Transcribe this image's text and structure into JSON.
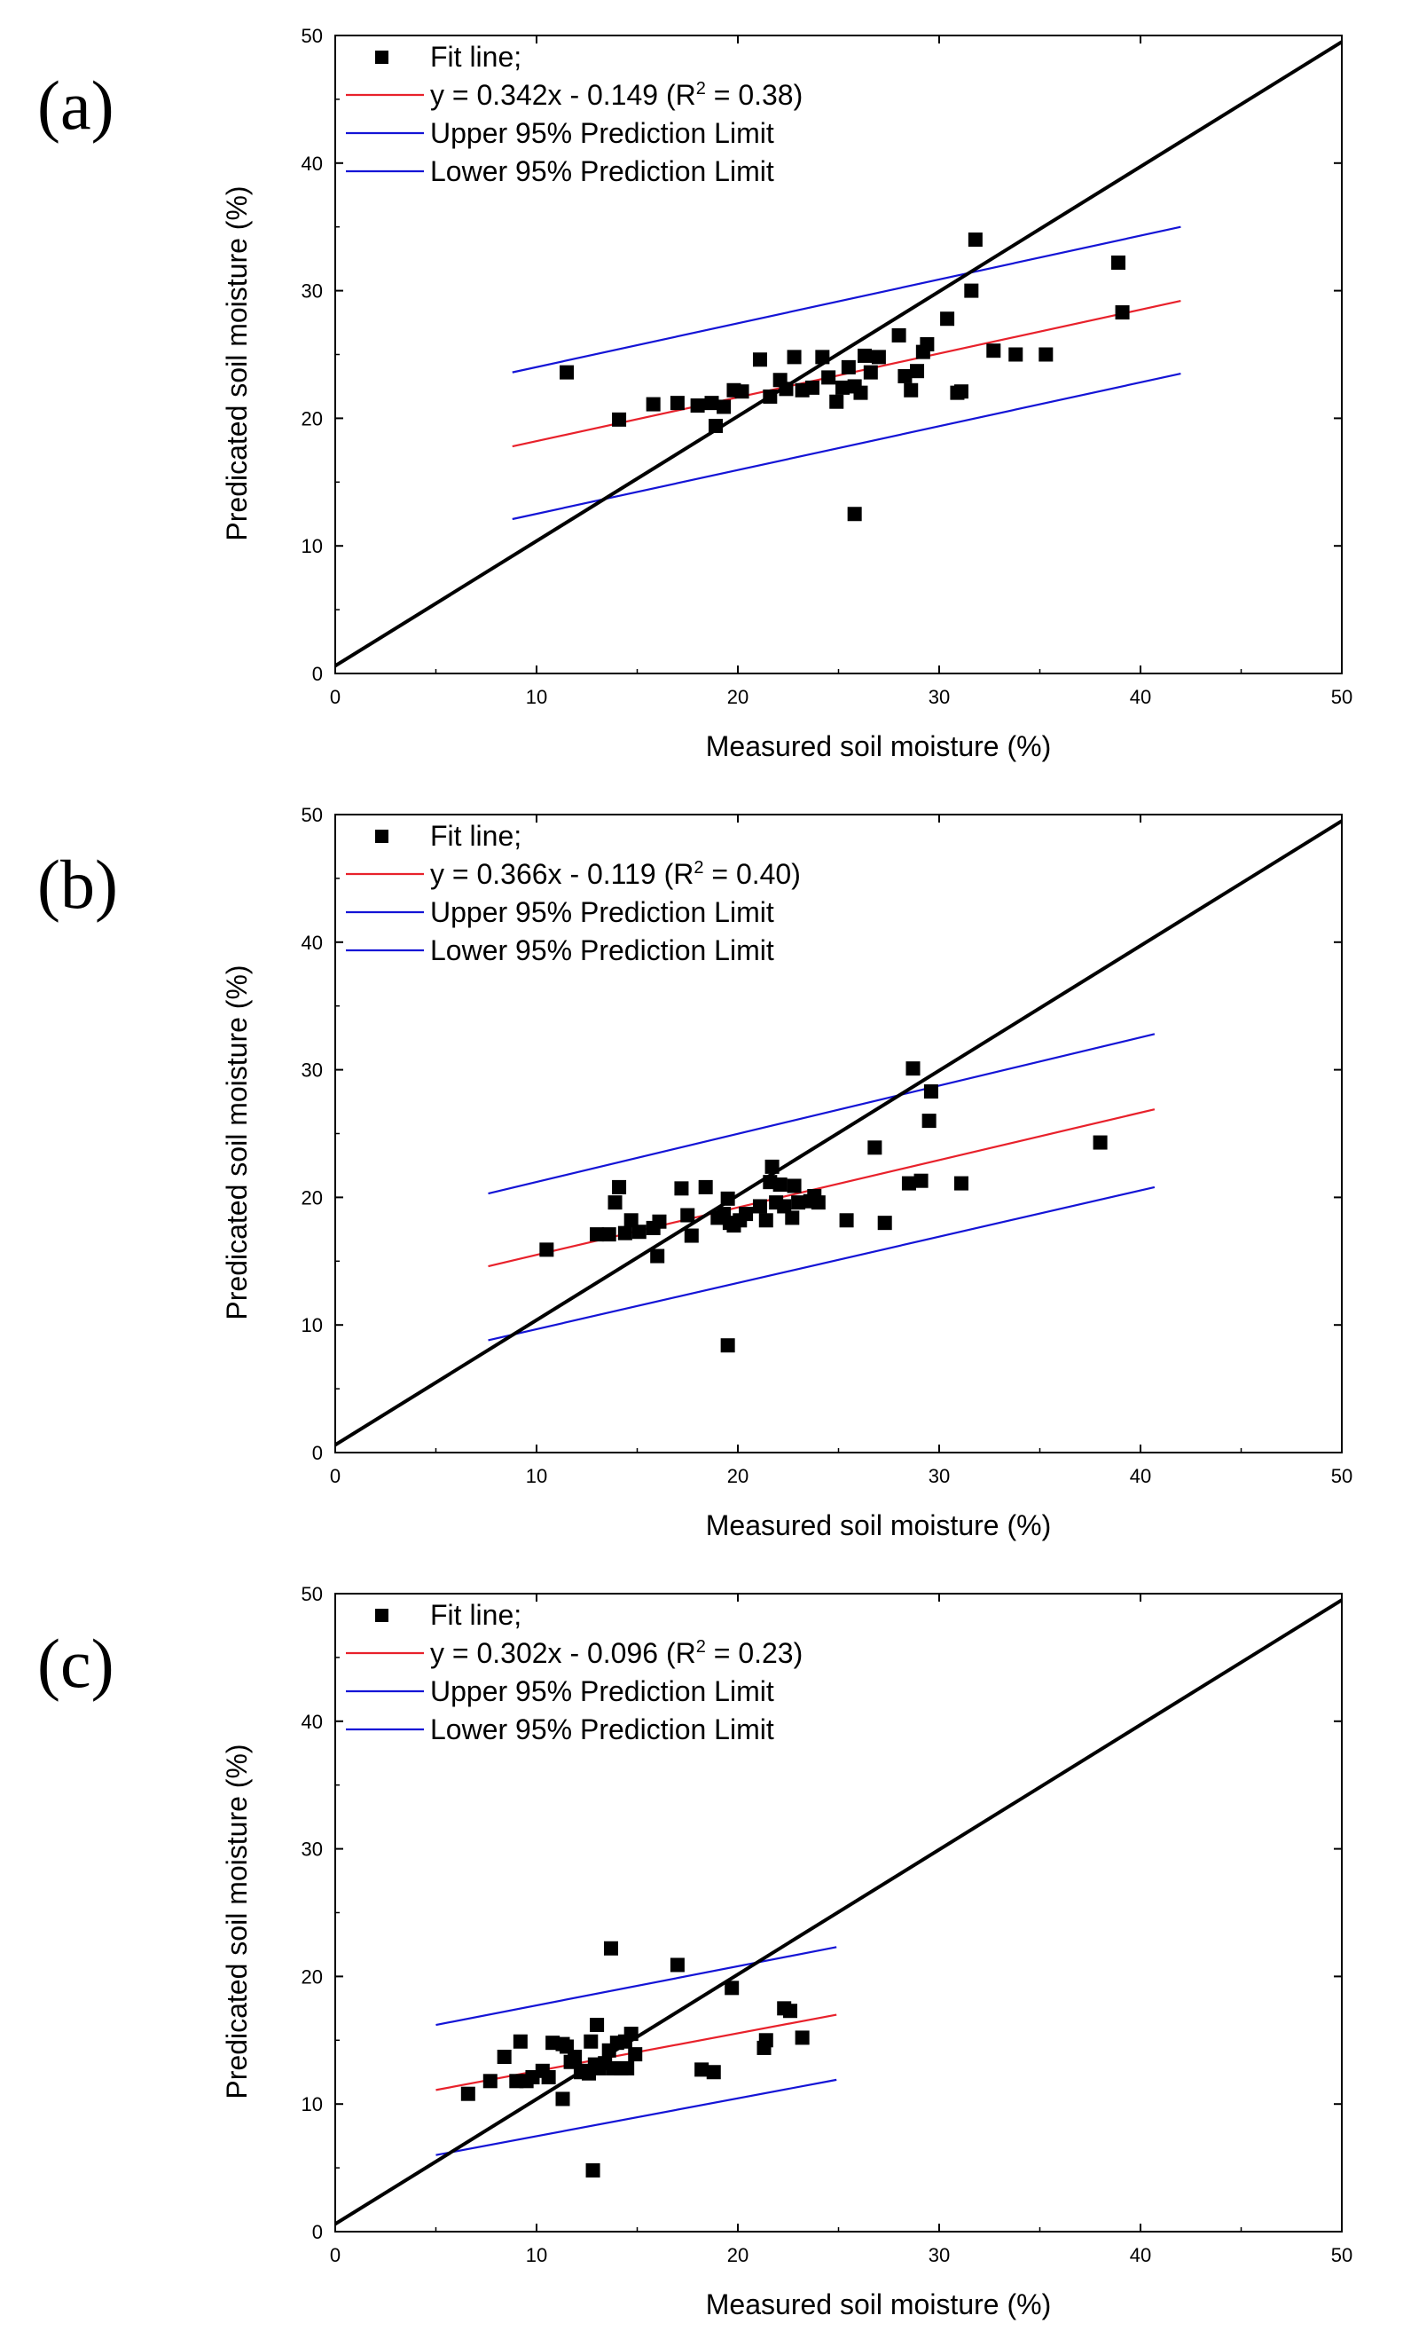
{
  "chart_data": [
    {
      "type": "scatter",
      "panel": "(a)",
      "xlabel": "Measured soil moisture (%)",
      "ylabel": "Predicated soil moisture (%)",
      "xlim": [
        0,
        50
      ],
      "ylim": [
        0,
        50
      ],
      "xticks": [
        "0",
        "10",
        "20",
        "30",
        "40",
        "50"
      ],
      "yticks": [
        "0",
        "10",
        "20",
        "30",
        "40",
        "50"
      ],
      "legend": {
        "position": "top-left",
        "points_label": "Fit line;",
        "fit_label": "y = 0.342x - 0.149 (R",
        "fit_sup": "2",
        "fit_tail": " = 0.38)",
        "upper_label": "Upper 95% Prediction Limit",
        "lower_label": "Lower 95% Prediction Limit"
      },
      "one_to_one": [
        [
          0,
          0.6
        ],
        [
          50,
          49.5
        ]
      ],
      "fit_line": [
        [
          8.8,
          17.8
        ],
        [
          42,
          29.2
        ]
      ],
      "upper_limit": [
        [
          8.8,
          23.6
        ],
        [
          42,
          35.0
        ]
      ],
      "lower_limit": [
        [
          8.8,
          12.1
        ],
        [
          42,
          23.5
        ]
      ],
      "points": [
        [
          11.5,
          23.6
        ],
        [
          14.1,
          19.9
        ],
        [
          15.8,
          21.1
        ],
        [
          17.0,
          21.2
        ],
        [
          18.0,
          21.0
        ],
        [
          18.7,
          21.2
        ],
        [
          18.9,
          19.4
        ],
        [
          19.3,
          20.9
        ],
        [
          19.8,
          22.2
        ],
        [
          20.2,
          22.1
        ],
        [
          21.1,
          24.6
        ],
        [
          21.6,
          21.7
        ],
        [
          22.1,
          23.0
        ],
        [
          22.4,
          22.3
        ],
        [
          22.8,
          24.8
        ],
        [
          23.2,
          22.2
        ],
        [
          23.7,
          22.4
        ],
        [
          24.2,
          24.8
        ],
        [
          24.5,
          23.2
        ],
        [
          24.9,
          21.3
        ],
        [
          25.2,
          22.4
        ],
        [
          25.5,
          24.0
        ],
        [
          25.8,
          22.5
        ],
        [
          26.1,
          22.0
        ],
        [
          25.8,
          12.5
        ],
        [
          26.3,
          24.9
        ],
        [
          26.6,
          23.6
        ],
        [
          27.0,
          24.8
        ],
        [
          28.0,
          26.5
        ],
        [
          28.3,
          23.3
        ],
        [
          28.6,
          22.2
        ],
        [
          28.9,
          23.7
        ],
        [
          29.2,
          25.2
        ],
        [
          29.4,
          25.8
        ],
        [
          30.4,
          27.8
        ],
        [
          30.9,
          22.0
        ],
        [
          31.1,
          22.1
        ],
        [
          31.6,
          30.0
        ],
        [
          31.8,
          34.0
        ],
        [
          32.7,
          25.3
        ],
        [
          33.8,
          25.0
        ],
        [
          35.3,
          25.0
        ],
        [
          38.9,
          32.2
        ],
        [
          39.1,
          28.3
        ]
      ]
    },
    {
      "type": "scatter",
      "panel": "(b)",
      "xlabel": "Measured soil moisture (%)",
      "ylabel": "Predicated soil moisture (%)",
      "xlim": [
        0,
        50
      ],
      "ylim": [
        0,
        50
      ],
      "xticks": [
        "0",
        "10",
        "20",
        "30",
        "40",
        "50"
      ],
      "yticks": [
        "0",
        "10",
        "20",
        "30",
        "40",
        "50"
      ],
      "legend": {
        "position": "top-left",
        "points_label": "Fit line;",
        "fit_label": "y = 0.366x - 0.119 (R",
        "fit_sup": "2",
        "fit_tail": " = 0.40)",
        "upper_label": "Upper 95% Prediction Limit",
        "lower_label": "Lower 95% Prediction Limit"
      },
      "one_to_one": [
        [
          0,
          0.6
        ],
        [
          50,
          49.5
        ]
      ],
      "fit_line": [
        [
          7.6,
          14.6
        ],
        [
          40.7,
          26.9
        ]
      ],
      "upper_limit": [
        [
          7.6,
          20.3
        ],
        [
          40.7,
          32.8
        ]
      ],
      "lower_limit": [
        [
          7.6,
          8.8
        ],
        [
          40.7,
          20.8
        ]
      ],
      "points": [
        [
          10.5,
          15.9
        ],
        [
          13.0,
          17.1
        ],
        [
          13.6,
          17.1
        ],
        [
          13.9,
          19.6
        ],
        [
          14.1,
          20.8
        ],
        [
          14.4,
          17.2
        ],
        [
          14.7,
          18.2
        ],
        [
          15.1,
          17.3
        ],
        [
          15.8,
          17.6
        ],
        [
          16.0,
          15.4
        ],
        [
          16.1,
          18.1
        ],
        [
          17.2,
          20.7
        ],
        [
          17.5,
          18.6
        ],
        [
          17.7,
          17.0
        ],
        [
          18.4,
          20.8
        ],
        [
          19.0,
          18.4
        ],
        [
          19.3,
          18.7
        ],
        [
          19.5,
          19.9
        ],
        [
          19.6,
          18.0
        ],
        [
          19.8,
          17.8
        ],
        [
          20.1,
          18.2
        ],
        [
          20.4,
          18.7
        ],
        [
          19.5,
          8.4
        ],
        [
          21.1,
          19.3
        ],
        [
          21.4,
          18.2
        ],
        [
          21.6,
          21.2
        ],
        [
          21.7,
          22.4
        ],
        [
          21.9,
          19.6
        ],
        [
          22.1,
          21.0
        ],
        [
          22.3,
          19.3
        ],
        [
          22.7,
          18.4
        ],
        [
          22.8,
          20.9
        ],
        [
          23.0,
          19.6
        ],
        [
          23.6,
          19.7
        ],
        [
          23.8,
          20.1
        ],
        [
          24.0,
          19.6
        ],
        [
          25.4,
          18.2
        ],
        [
          26.8,
          23.9
        ],
        [
          27.3,
          18.0
        ],
        [
          28.5,
          21.1
        ],
        [
          28.7,
          30.1
        ],
        [
          29.1,
          21.3
        ],
        [
          29.5,
          26.0
        ],
        [
          29.6,
          28.3
        ],
        [
          31.1,
          21.1
        ],
        [
          38.0,
          24.3
        ]
      ]
    },
    {
      "type": "scatter",
      "panel": "(c)",
      "xlabel": "Measured soil moisture (%)",
      "ylabel": "Predicated soil moisture (%)",
      "xlim": [
        0,
        50
      ],
      "ylim": [
        0,
        50
      ],
      "xticks": [
        "0",
        "10",
        "20",
        "30",
        "40",
        "50"
      ],
      "yticks": [
        "0",
        "10",
        "20",
        "30",
        "40",
        "50"
      ],
      "legend": {
        "position": "top-left",
        "points_label": "Fit line;",
        "fit_label": "y = 0.302x - 0.096 (R",
        "fit_sup": "2",
        "fit_tail": " = 0.23)",
        "upper_label": "Upper 95% Prediction Limit",
        "lower_label": "Lower 95% Prediction Limit"
      },
      "one_to_one": [
        [
          0,
          0.6
        ],
        [
          50,
          49.5
        ]
      ],
      "fit_line": [
        [
          5.0,
          11.1
        ],
        [
          24.9,
          17.0
        ]
      ],
      "upper_limit": [
        [
          5.0,
          16.2
        ],
        [
          24.9,
          22.3
        ]
      ],
      "lower_limit": [
        [
          5.0,
          6.0
        ],
        [
          24.9,
          11.9
        ]
      ],
      "points": [
        [
          6.6,
          10.8
        ],
        [
          7.7,
          11.8
        ],
        [
          8.4,
          13.7
        ],
        [
          9.0,
          11.8
        ],
        [
          9.2,
          14.9
        ],
        [
          9.5,
          11.8
        ],
        [
          9.8,
          12.1
        ],
        [
          10.3,
          12.6
        ],
        [
          10.6,
          12.1
        ],
        [
          10.8,
          14.8
        ],
        [
          11.3,
          14.7
        ],
        [
          11.5,
          14.5
        ],
        [
          11.3,
          10.4
        ],
        [
          11.7,
          13.3
        ],
        [
          11.9,
          13.7
        ],
        [
          12.2,
          12.5
        ],
        [
          12.4,
          12.6
        ],
        [
          12.6,
          12.4
        ],
        [
          12.7,
          14.9
        ],
        [
          12.9,
          13.1
        ],
        [
          13.0,
          16.2
        ],
        [
          13.1,
          12.8
        ],
        [
          13.4,
          13.2
        ],
        [
          13.6,
          14.2
        ],
        [
          13.7,
          22.2
        ],
        [
          13.8,
          12.8
        ],
        [
          14.0,
          14.8
        ],
        [
          14.2,
          12.8
        ],
        [
          14.4,
          14.9
        ],
        [
          14.5,
          12.8
        ],
        [
          14.7,
          15.5
        ],
        [
          14.9,
          13.9
        ],
        [
          12.8,
          4.8
        ],
        [
          17.0,
          20.9
        ],
        [
          18.2,
          12.7
        ],
        [
          18.8,
          12.5
        ],
        [
          19.7,
          19.1
        ],
        [
          21.3,
          14.4
        ],
        [
          21.4,
          15.0
        ],
        [
          22.3,
          17.5
        ],
        [
          22.6,
          17.3
        ],
        [
          23.2,
          15.2
        ]
      ]
    }
  ],
  "colors": {
    "axis": "#000000",
    "one_to_one": "#000000",
    "fit": "#e8212b",
    "limits": "#1414d6",
    "points": "#000000"
  }
}
